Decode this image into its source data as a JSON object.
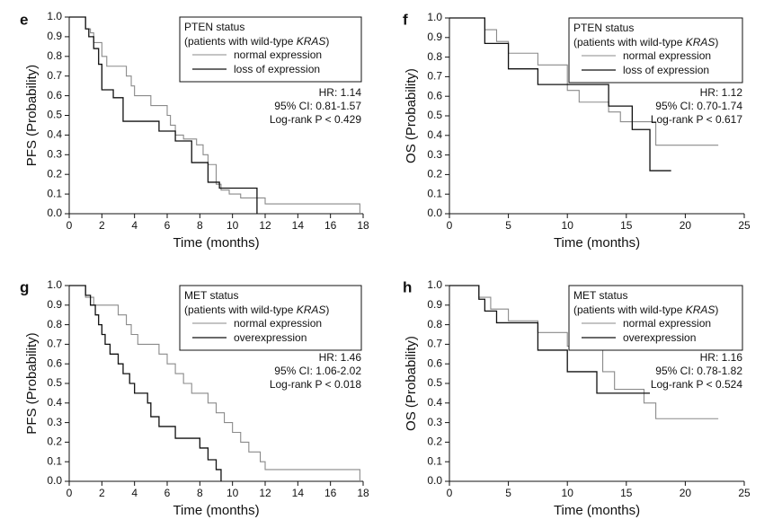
{
  "chart_data": [
    {
      "panel": "e",
      "type": "line",
      "xlabel": "Time (months)",
      "ylabel": "PFS (Probability)",
      "xlim": [
        0,
        18
      ],
      "ylim": [
        0,
        1
      ],
      "xticks": [
        0,
        2,
        4,
        6,
        8,
        10,
        12,
        14,
        16,
        18
      ],
      "yticks": [
        0,
        0.1,
        0.2,
        0.3,
        0.4,
        0.5,
        0.6,
        0.7,
        0.8,
        0.9,
        1.0
      ],
      "legend_title": "PTEN status",
      "legend_subtitle_prefix": "(patients with wild-type ",
      "legend_subtitle_italic": "KRAS",
      "legend_subtitle_suffix": ")",
      "stats": [
        "HR: 1.14",
        "95% CI: 0.81-1.57",
        "Log-rank P < 0.429"
      ],
      "series": [
        {
          "name": "normal expression",
          "color": "#8a8a8a",
          "x": [
            0,
            0.8,
            1.0,
            1.3,
            1.5,
            2.0,
            2.3,
            3.5,
            3.8,
            4.0,
            5.0,
            5.6,
            6.0,
            6.2,
            6.5,
            7.0,
            7.8,
            8.2,
            8.5,
            9.0,
            9.3,
            9.8,
            10.5,
            12.0,
            17.5,
            17.8
          ],
          "y": [
            1.0,
            1.0,
            0.94,
            0.92,
            0.87,
            0.8,
            0.75,
            0.7,
            0.65,
            0.6,
            0.55,
            0.55,
            0.5,
            0.45,
            0.4,
            0.38,
            0.35,
            0.3,
            0.25,
            0.15,
            0.12,
            0.1,
            0.08,
            0.05,
            0.05,
            0.0
          ]
        },
        {
          "name": "loss of expression",
          "color": "#111111",
          "x": [
            0,
            0.8,
            1.0,
            1.2,
            1.5,
            1.8,
            2.0,
            2.7,
            3.3,
            4.0,
            5.5,
            6.5,
            7.5,
            8.5,
            9.2,
            11.5
          ],
          "y": [
            1.0,
            1.0,
            0.94,
            0.9,
            0.84,
            0.76,
            0.63,
            0.59,
            0.47,
            0.47,
            0.42,
            0.37,
            0.26,
            0.16,
            0.13,
            0.0
          ]
        }
      ]
    },
    {
      "panel": "f",
      "type": "line",
      "xlabel": "Time (months)",
      "ylabel": "OS (Probability)",
      "xlim": [
        0,
        25
      ],
      "ylim": [
        0,
        1
      ],
      "xticks": [
        0,
        5,
        10,
        15,
        20,
        25
      ],
      "yticks": [
        0,
        0.1,
        0.2,
        0.3,
        0.4,
        0.5,
        0.6,
        0.7,
        0.8,
        0.9,
        1.0
      ],
      "legend_title": "PTEN status",
      "legend_subtitle_prefix": "(patients with wild-type ",
      "legend_subtitle_italic": "KRAS",
      "legend_subtitle_suffix": ")",
      "stats": [
        "HR: 1.12",
        "95% CI: 0.70-1.74",
        "Log-rank P < 0.617"
      ],
      "series": [
        {
          "name": "normal expression",
          "color": "#8a8a8a",
          "x": [
            0,
            2.0,
            3.0,
            4.0,
            5.0,
            7.5,
            10.0,
            11.0,
            13.5,
            14.5,
            17.5,
            22.8
          ],
          "y": [
            1.0,
            1.0,
            0.94,
            0.88,
            0.82,
            0.76,
            0.63,
            0.57,
            0.52,
            0.47,
            0.35,
            0.35
          ]
        },
        {
          "name": "loss of expression",
          "color": "#111111",
          "x": [
            0,
            2.0,
            3.0,
            5.0,
            7.5,
            13.5,
            15.5,
            17.0,
            18.8
          ],
          "y": [
            1.0,
            1.0,
            0.87,
            0.74,
            0.66,
            0.55,
            0.43,
            0.22,
            0.22
          ]
        }
      ]
    },
    {
      "panel": "g",
      "type": "line",
      "xlabel": "Time (months)",
      "ylabel": "PFS (Probability)",
      "xlim": [
        0,
        18
      ],
      "ylim": [
        0,
        1
      ],
      "xticks": [
        0,
        2,
        4,
        6,
        8,
        10,
        12,
        14,
        16,
        18
      ],
      "yticks": [
        0,
        0.1,
        0.2,
        0.3,
        0.4,
        0.5,
        0.6,
        0.7,
        0.8,
        0.9,
        1.0
      ],
      "legend_title": "MET status",
      "legend_subtitle_prefix": "(patients with wild-type ",
      "legend_subtitle_italic": "KRAS",
      "legend_subtitle_suffix": ")",
      "stats": [
        "HR: 1.46",
        "95% CI: 1.06-2.02",
        "Log-rank P < 0.018"
      ],
      "series": [
        {
          "name": "normal expression",
          "color": "#8a8a8a",
          "x": [
            0,
            0.8,
            1.0,
            1.5,
            2.0,
            3.0,
            3.5,
            3.8,
            4.2,
            5.0,
            5.5,
            6.0,
            6.5,
            7.0,
            7.5,
            8.5,
            9.0,
            9.5,
            10.0,
            10.5,
            11.0,
            11.7,
            12.0,
            17.5,
            17.8
          ],
          "y": [
            1.0,
            1.0,
            0.94,
            0.9,
            0.9,
            0.85,
            0.8,
            0.75,
            0.7,
            0.7,
            0.65,
            0.6,
            0.55,
            0.5,
            0.45,
            0.4,
            0.35,
            0.3,
            0.25,
            0.2,
            0.15,
            0.1,
            0.06,
            0.06,
            0.0
          ]
        },
        {
          "name": "overexpression",
          "color": "#111111",
          "x": [
            0,
            0.8,
            1.0,
            1.3,
            1.6,
            1.8,
            2.0,
            2.2,
            2.5,
            3.0,
            3.3,
            3.7,
            4.0,
            4.5,
            4.8,
            5.0,
            5.5,
            6.0,
            6.5,
            7.0,
            8.0,
            8.5,
            9.0,
            9.3
          ],
          "y": [
            1.0,
            1.0,
            0.95,
            0.9,
            0.85,
            0.8,
            0.75,
            0.7,
            0.65,
            0.6,
            0.55,
            0.5,
            0.45,
            0.45,
            0.4,
            0.33,
            0.28,
            0.28,
            0.22,
            0.22,
            0.17,
            0.11,
            0.06,
            0.0
          ]
        }
      ]
    },
    {
      "panel": "h",
      "type": "line",
      "xlabel": "Time (months)",
      "ylabel": "OS (Probability)",
      "xlim": [
        0,
        25
      ],
      "ylim": [
        0,
        1
      ],
      "xticks": [
        0,
        5,
        10,
        15,
        20,
        25
      ],
      "yticks": [
        0,
        0.1,
        0.2,
        0.3,
        0.4,
        0.5,
        0.6,
        0.7,
        0.8,
        0.9,
        1.0
      ],
      "legend_title": "MET status",
      "legend_subtitle_prefix": "(patients with wild-type ",
      "legend_subtitle_italic": "KRAS",
      "legend_subtitle_suffix": ")",
      "stats": [
        "HR: 1.16",
        "95% CI: 0.78-1.82",
        "Log-rank P < 0.524"
      ],
      "series": [
        {
          "name": "normal expression",
          "color": "#8a8a8a",
          "x": [
            0,
            2.0,
            2.5,
            3.5,
            5.0,
            6.5,
            7.5,
            8.5,
            10.0,
            11.5,
            13.0,
            14.0,
            16.5,
            17.5,
            22.8
          ],
          "y": [
            1.0,
            1.0,
            0.94,
            0.88,
            0.82,
            0.82,
            0.76,
            0.76,
            0.69,
            0.69,
            0.56,
            0.47,
            0.4,
            0.32,
            0.32
          ]
        },
        {
          "name": "overexpression",
          "color": "#111111",
          "x": [
            0,
            2.0,
            2.5,
            3.0,
            4.0,
            7.5,
            10.0,
            12.5,
            17.0
          ],
          "y": [
            1.0,
            1.0,
            0.93,
            0.87,
            0.81,
            0.67,
            0.56,
            0.45,
            0.45
          ]
        }
      ]
    }
  ]
}
